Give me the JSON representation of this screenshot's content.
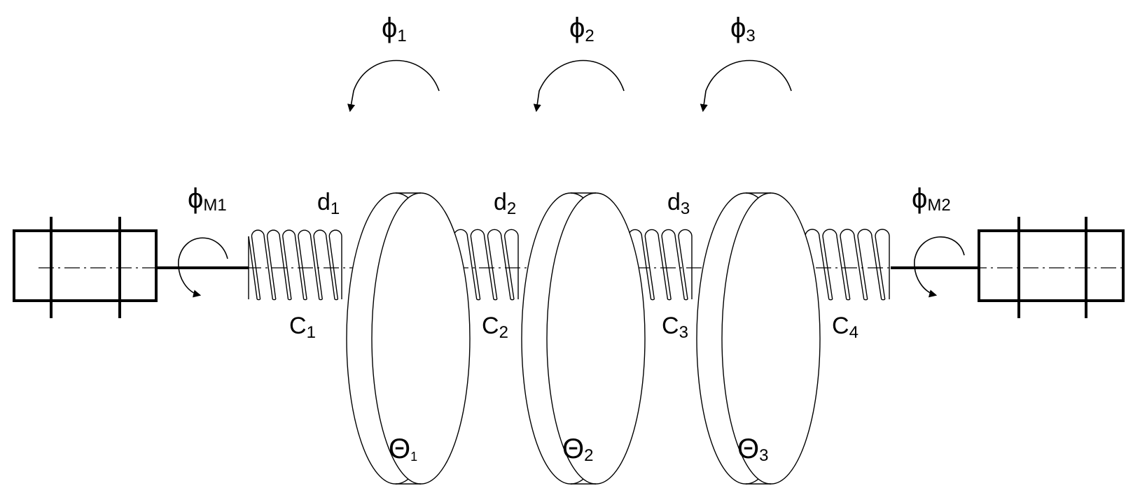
{
  "labels": {
    "phi1": {
      "main": "ϕ",
      "sub": "1"
    },
    "phi2": {
      "main": "ϕ",
      "sub": "2"
    },
    "phi3": {
      "main": "ϕ",
      "sub": "3"
    },
    "phiM1": {
      "main": "ϕ",
      "sub": "M1"
    },
    "phiM2": {
      "main": "ϕ",
      "sub": "M2"
    },
    "d1": {
      "main": "d",
      "sub": "1"
    },
    "d2": {
      "main": "d",
      "sub": "2"
    },
    "d3": {
      "main": "d",
      "sub": "3"
    },
    "c1": {
      "main": "C",
      "sub": "1"
    },
    "c2": {
      "main": "C",
      "sub": "2"
    },
    "c3": {
      "main": "C",
      "sub": "3"
    },
    "c4": {
      "main": "C",
      "sub": "4"
    },
    "theta1": {
      "main": "Θ",
      "sub": "1"
    },
    "theta2": {
      "main": "Θ",
      "sub": "2"
    },
    "theta3": {
      "main": "Θ",
      "sub": "3"
    }
  },
  "colors": {
    "stroke": "#000000",
    "background": "#ffffff"
  }
}
